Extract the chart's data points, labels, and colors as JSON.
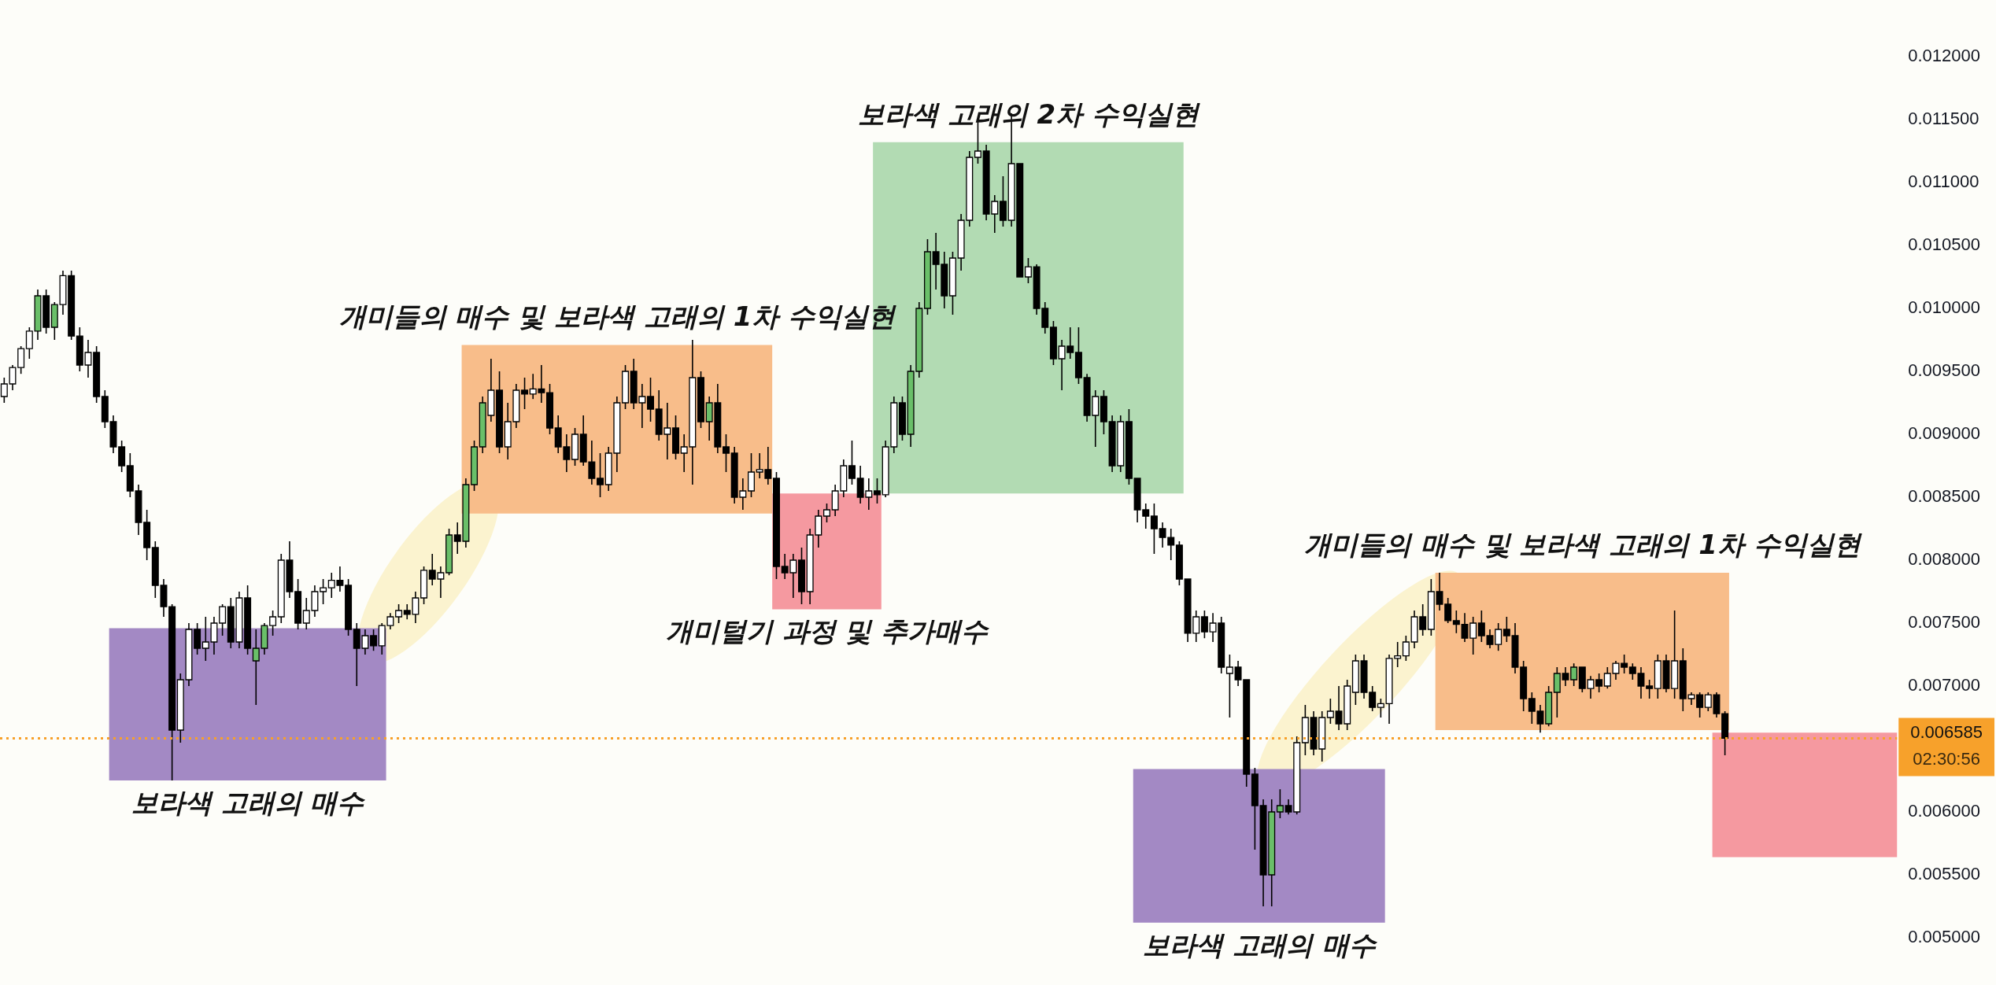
{
  "chart_data": {
    "type": "candlestick",
    "categories": [
      null,
      null,
      null,
      null,
      null,
      null,
      null,
      null,
      null,
      null,
      null,
      null,
      null,
      null,
      null,
      null,
      null,
      null,
      null,
      null,
      null,
      null,
      null,
      null,
      null,
      null,
      null,
      null,
      null,
      null,
      null,
      null,
      null,
      null,
      null,
      null,
      null,
      null,
      null,
      null,
      null,
      null,
      null,
      null,
      null,
      null,
      null,
      null,
      null,
      null,
      null,
      null,
      null,
      null,
      null,
      null,
      null,
      null,
      null,
      null,
      null,
      null,
      null,
      null,
      null,
      null,
      null,
      null,
      null,
      null,
      null,
      null,
      null,
      null,
      null,
      null,
      null,
      null,
      null,
      null,
      null,
      null,
      null,
      null,
      null,
      null,
      null,
      null,
      null,
      null,
      null,
      null,
      null,
      null,
      null,
      null,
      null,
      null,
      null,
      null,
      null,
      null,
      null,
      null,
      null,
      null,
      null,
      null,
      null,
      null,
      null,
      null,
      null,
      null,
      null,
      null,
      null,
      null,
      null,
      null,
      null,
      null,
      null,
      null,
      null,
      null,
      null,
      null,
      null,
      null,
      null,
      null,
      null,
      null,
      null,
      null,
      null,
      null,
      null,
      null,
      null,
      null,
      null,
      null,
      null,
      null,
      null,
      null,
      null,
      null,
      null,
      null,
      null,
      null,
      null,
      null,
      null,
      null,
      null,
      null,
      null,
      null,
      null,
      null,
      null,
      null,
      null,
      null,
      null,
      null,
      null,
      null,
      null,
      null,
      null,
      null,
      null,
      null,
      null,
      null,
      null,
      null,
      null,
      null,
      null,
      null,
      null,
      null,
      null,
      null,
      null,
      null,
      null,
      null,
      null,
      null,
      null,
      null,
      null,
      null,
      null,
      null,
      null,
      null,
      null,
      null,
      null,
      null,
      null,
      null,
      null,
      null,
      null,
      null,
      null,
      null,
      null,
      null,
      null,
      null,
      null,
      null,
      null,
      null,
      null,
      null
    ],
    "ohlc": [
      [
        0.0093,
        0.00945,
        0.00925,
        0.0094
      ],
      [
        0.0094,
        0.00955,
        0.00935,
        0.00953
      ],
      [
        0.00953,
        0.0097,
        0.00948,
        0.00968
      ],
      [
        0.00968,
        0.00985,
        0.0096,
        0.00982
      ],
      [
        0.00982,
        0.01015,
        0.00975,
        0.0101
      ],
      [
        0.0101,
        0.01015,
        0.0098,
        0.00985
      ],
      [
        0.00985,
        0.01005,
        0.00975,
        0.01003
      ],
      [
        0.01003,
        0.0103,
        0.00995,
        0.01026
      ],
      [
        0.01026,
        0.0103,
        0.00975,
        0.00978
      ],
      [
        0.00978,
        0.00985,
        0.0095,
        0.00955
      ],
      [
        0.00955,
        0.00975,
        0.00945,
        0.00965
      ],
      [
        0.00965,
        0.0097,
        0.00925,
        0.0093
      ],
      [
        0.0093,
        0.00935,
        0.00905,
        0.0091
      ],
      [
        0.0091,
        0.00915,
        0.00885,
        0.0089
      ],
      [
        0.0089,
        0.00895,
        0.0087,
        0.00875
      ],
      [
        0.00875,
        0.00885,
        0.0085,
        0.00855
      ],
      [
        0.00855,
        0.0086,
        0.0082,
        0.0083
      ],
      [
        0.0083,
        0.0084,
        0.008,
        0.0081
      ],
      [
        0.0081,
        0.00815,
        0.0077,
        0.0078
      ],
      [
        0.0078,
        0.00785,
        0.00755,
        0.00763
      ],
      [
        0.00763,
        0.00765,
        0.00625,
        0.00665
      ],
      [
        0.00665,
        0.0071,
        0.00655,
        0.00705
      ],
      [
        0.00705,
        0.0075,
        0.007,
        0.00745
      ],
      [
        0.00745,
        0.0075,
        0.00725,
        0.0073
      ],
      [
        0.0073,
        0.00755,
        0.0072,
        0.00735
      ],
      [
        0.00735,
        0.00755,
        0.00725,
        0.0075
      ],
      [
        0.0075,
        0.00765,
        0.0074,
        0.00763
      ],
      [
        0.00763,
        0.0077,
        0.0073,
        0.00735
      ],
      [
        0.00735,
        0.00775,
        0.0073,
        0.0077
      ],
      [
        0.0077,
        0.0078,
        0.00725,
        0.0073
      ],
      [
        0.0072,
        0.00745,
        0.00685,
        0.0073
      ],
      [
        0.0073,
        0.0075,
        0.00725,
        0.00748
      ],
      [
        0.00748,
        0.0076,
        0.0074,
        0.00755
      ],
      [
        0.00755,
        0.00805,
        0.0075,
        0.008
      ],
      [
        0.008,
        0.00815,
        0.0077,
        0.00775
      ],
      [
        0.00775,
        0.00785,
        0.00745,
        0.0075
      ],
      [
        0.0075,
        0.0077,
        0.00745,
        0.0076
      ],
      [
        0.0076,
        0.0078,
        0.00755,
        0.00775
      ],
      [
        0.00775,
        0.00785,
        0.00765,
        0.00778
      ],
      [
        0.00778,
        0.0079,
        0.0077,
        0.00784
      ],
      [
        0.00784,
        0.00795,
        0.00775,
        0.0078
      ],
      [
        0.0078,
        0.00785,
        0.0074,
        0.00745
      ],
      [
        0.00745,
        0.0075,
        0.007,
        0.0073
      ],
      [
        0.0073,
        0.00745,
        0.00725,
        0.0074
      ],
      [
        0.0074,
        0.00745,
        0.00728,
        0.00732
      ],
      [
        0.00732,
        0.0075,
        0.00725,
        0.00748
      ],
      [
        0.00748,
        0.00758,
        0.00745,
        0.00755
      ],
      [
        0.00755,
        0.00765,
        0.0075,
        0.0076
      ],
      [
        0.0076,
        0.00765,
        0.00753,
        0.00757
      ],
      [
        0.00757,
        0.00775,
        0.0075,
        0.0077
      ],
      [
        0.0077,
        0.00795,
        0.00765,
        0.00792
      ],
      [
        0.00792,
        0.00805,
        0.0078,
        0.00785
      ],
      [
        0.00785,
        0.00795,
        0.0077,
        0.0079
      ],
      [
        0.0079,
        0.00825,
        0.00788,
        0.0082
      ],
      [
        0.0082,
        0.0083,
        0.00805,
        0.00815
      ],
      [
        0.00815,
        0.00865,
        0.0081,
        0.0086
      ],
      [
        0.0086,
        0.00895,
        0.00855,
        0.0089
      ],
      [
        0.0089,
        0.0093,
        0.00885,
        0.00925
      ],
      [
        0.00915,
        0.0096,
        0.0091,
        0.00935
      ],
      [
        0.00935,
        0.0095,
        0.00885,
        0.0089
      ],
      [
        0.0089,
        0.00925,
        0.0088,
        0.0091
      ],
      [
        0.0091,
        0.0094,
        0.00905,
        0.00935
      ],
      [
        0.00935,
        0.00945,
        0.0092,
        0.00932
      ],
      [
        0.00932,
        0.00948,
        0.00928,
        0.00936
      ],
      [
        0.00936,
        0.00955,
        0.00925,
        0.00933
      ],
      [
        0.00933,
        0.0094,
        0.009,
        0.00905
      ],
      [
        0.00905,
        0.00915,
        0.00885,
        0.0089
      ],
      [
        0.0089,
        0.009,
        0.0087,
        0.0088
      ],
      [
        0.0088,
        0.00905,
        0.00875,
        0.009
      ],
      [
        0.009,
        0.00915,
        0.00875,
        0.00878
      ],
      [
        0.00878,
        0.00895,
        0.0086,
        0.00865
      ],
      [
        0.00865,
        0.00885,
        0.0085,
        0.0086
      ],
      [
        0.0086,
        0.0089,
        0.00855,
        0.00885
      ],
      [
        0.00885,
        0.0093,
        0.0087,
        0.00925
      ],
      [
        0.00925,
        0.00955,
        0.0092,
        0.0095
      ],
      [
        0.0095,
        0.0096,
        0.0092,
        0.00925
      ],
      [
        0.00925,
        0.0094,
        0.00905,
        0.0093
      ],
      [
        0.0093,
        0.00945,
        0.0091,
        0.0092
      ],
      [
        0.0092,
        0.00935,
        0.00895,
        0.009
      ],
      [
        0.009,
        0.00925,
        0.0088,
        0.00905
      ],
      [
        0.00905,
        0.00915,
        0.0088,
        0.00885
      ],
      [
        0.00885,
        0.009,
        0.0087,
        0.0089
      ],
      [
        0.0089,
        0.00975,
        0.0086,
        0.00945
      ],
      [
        0.00945,
        0.0095,
        0.00905,
        0.0091
      ],
      [
        0.0091,
        0.0093,
        0.00895,
        0.00925
      ],
      [
        0.00925,
        0.0094,
        0.00885,
        0.0089
      ],
      [
        0.0089,
        0.009,
        0.0087,
        0.00885
      ],
      [
        0.00885,
        0.0089,
        0.00845,
        0.0085
      ],
      [
        0.0085,
        0.00865,
        0.0084,
        0.00855
      ],
      [
        0.00855,
        0.00885,
        0.0085,
        0.0087
      ],
      [
        0.0087,
        0.00885,
        0.00865,
        0.00872
      ],
      [
        0.00872,
        0.0089,
        0.0086,
        0.00865
      ],
      [
        0.00865,
        0.0087,
        0.00785,
        0.00795
      ],
      [
        0.00795,
        0.00805,
        0.00785,
        0.0079
      ],
      [
        0.0079,
        0.00805,
        0.0077,
        0.008
      ],
      [
        0.008,
        0.0081,
        0.00765,
        0.00775
      ],
      [
        0.00775,
        0.00825,
        0.00765,
        0.0082
      ],
      [
        0.0082,
        0.0084,
        0.0081,
        0.00835
      ],
      [
        0.00835,
        0.00845,
        0.0083,
        0.0084
      ],
      [
        0.0084,
        0.0086,
        0.00835,
        0.00855
      ],
      [
        0.00855,
        0.0088,
        0.0085,
        0.00875
      ],
      [
        0.00875,
        0.00895,
        0.0086,
        0.00865
      ],
      [
        0.00865,
        0.00875,
        0.00845,
        0.0085
      ],
      [
        0.0085,
        0.00865,
        0.0084,
        0.00855
      ],
      [
        0.00855,
        0.00865,
        0.00845,
        0.00852
      ],
      [
        0.00852,
        0.00895,
        0.0085,
        0.0089
      ],
      [
        0.0089,
        0.0093,
        0.00885,
        0.00925
      ],
      [
        0.00925,
        0.0093,
        0.00895,
        0.009
      ],
      [
        0.009,
        0.00955,
        0.0089,
        0.0095
      ],
      [
        0.0095,
        0.01005,
        0.00945,
        0.01
      ],
      [
        0.01,
        0.01055,
        0.00995,
        0.01045
      ],
      [
        0.01045,
        0.0106,
        0.01015,
        0.01035
      ],
      [
        0.01035,
        0.01045,
        0.01,
        0.0101
      ],
      [
        0.0101,
        0.01045,
        0.00995,
        0.0104
      ],
      [
        0.0104,
        0.01075,
        0.0103,
        0.0107
      ],
      [
        0.0107,
        0.01125,
        0.01065,
        0.0112
      ],
      [
        0.0112,
        0.0115,
        0.01115,
        0.01125
      ],
      [
        0.01125,
        0.0113,
        0.0107,
        0.01075
      ],
      [
        0.01075,
        0.0109,
        0.0106,
        0.01085
      ],
      [
        0.01085,
        0.01105,
        0.01065,
        0.0107
      ],
      [
        0.0107,
        0.01155,
        0.01065,
        0.01115
      ],
      [
        0.01115,
        0.01115,
        0.01025,
        0.01025
      ],
      [
        0.01025,
        0.0104,
        0.0102,
        0.01033
      ],
      [
        0.01033,
        0.01035,
        0.00995,
        0.01
      ],
      [
        0.01,
        0.01005,
        0.0098,
        0.00985
      ],
      [
        0.00985,
        0.0099,
        0.00955,
        0.0096
      ],
      [
        0.0096,
        0.00975,
        0.00935,
        0.0097
      ],
      [
        0.0097,
        0.00985,
        0.0096,
        0.00965
      ],
      [
        0.00965,
        0.00985,
        0.0094,
        0.00945
      ],
      [
        0.00945,
        0.00948,
        0.0091,
        0.00915
      ],
      [
        0.00915,
        0.00935,
        0.0089,
        0.0093
      ],
      [
        0.0093,
        0.00935,
        0.009,
        0.0091
      ],
      [
        0.0091,
        0.00915,
        0.0087,
        0.00875
      ],
      [
        0.00875,
        0.00915,
        0.0087,
        0.0091
      ],
      [
        0.0091,
        0.0092,
        0.0086,
        0.00865
      ],
      [
        0.00865,
        0.00865,
        0.0083,
        0.0084
      ],
      [
        0.0084,
        0.00845,
        0.00825,
        0.00835
      ],
      [
        0.00835,
        0.00845,
        0.00805,
        0.00825
      ],
      [
        0.00825,
        0.0083,
        0.0081,
        0.00818
      ],
      [
        0.00818,
        0.00825,
        0.008,
        0.00812
      ],
      [
        0.00812,
        0.00815,
        0.0078,
        0.00785
      ],
      [
        0.00785,
        0.00785,
        0.00735,
        0.00742
      ],
      [
        0.00742,
        0.0076,
        0.00735,
        0.00755
      ],
      [
        0.00755,
        0.0076,
        0.00738,
        0.00743
      ],
      [
        0.00743,
        0.00758,
        0.00735,
        0.0075
      ],
      [
        0.0075,
        0.00755,
        0.0071,
        0.00715
      ],
      [
        0.0071,
        0.00725,
        0.00675,
        0.00715
      ],
      [
        0.00715,
        0.0072,
        0.007,
        0.00705
      ],
      [
        0.00705,
        0.00705,
        0.0062,
        0.0063
      ],
      [
        0.0063,
        0.00635,
        0.0057,
        0.00605
      ],
      [
        0.00605,
        0.0061,
        0.00525,
        0.0055
      ],
      [
        0.0055,
        0.0061,
        0.00525,
        0.006
      ],
      [
        0.006,
        0.00618,
        0.00595,
        0.00605
      ],
      [
        0.00605,
        0.0061,
        0.00598,
        0.006
      ],
      [
        0.006,
        0.0066,
        0.00598,
        0.00655
      ],
      [
        0.00655,
        0.00685,
        0.00645,
        0.00675
      ],
      [
        0.00675,
        0.0068,
        0.00645,
        0.0065
      ],
      [
        0.0065,
        0.0068,
        0.0064,
        0.00675
      ],
      [
        0.00675,
        0.0069,
        0.0067,
        0.0068
      ],
      [
        0.0068,
        0.007,
        0.00665,
        0.0067
      ],
      [
        0.0067,
        0.00705,
        0.00665,
        0.007
      ],
      [
        0.00695,
        0.00725,
        0.00685,
        0.0072
      ],
      [
        0.0072,
        0.00725,
        0.0069,
        0.00695
      ],
      [
        0.00695,
        0.007,
        0.0068,
        0.00683
      ],
      [
        0.00683,
        0.0069,
        0.00675,
        0.00686
      ],
      [
        0.00686,
        0.00725,
        0.0067,
        0.00722
      ],
      [
        0.00722,
        0.00735,
        0.00715,
        0.00724
      ],
      [
        0.00724,
        0.0074,
        0.0072,
        0.00735
      ],
      [
        0.00735,
        0.0076,
        0.0073,
        0.00755
      ],
      [
        0.00755,
        0.00765,
        0.0074,
        0.00745
      ],
      [
        0.00745,
        0.00785,
        0.0074,
        0.00775
      ],
      [
        0.00775,
        0.0079,
        0.0076,
        0.00765
      ],
      [
        0.00765,
        0.0077,
        0.0075,
        0.00752
      ],
      [
        0.00752,
        0.0076,
        0.00742,
        0.00749
      ],
      [
        0.00749,
        0.00758,
        0.00735,
        0.00738
      ],
      [
        0.00738,
        0.00755,
        0.00725,
        0.0075
      ],
      [
        0.0075,
        0.0076,
        0.00735,
        0.0074
      ],
      [
        0.0074,
        0.00745,
        0.0073,
        0.00733
      ],
      [
        0.00733,
        0.0075,
        0.00728,
        0.00745
      ],
      [
        0.00745,
        0.00755,
        0.00735,
        0.0074
      ],
      [
        0.0074,
        0.0075,
        0.0071,
        0.00715
      ],
      [
        0.00715,
        0.0072,
        0.0068,
        0.0069
      ],
      [
        0.0069,
        0.00695,
        0.0067,
        0.0068
      ],
      [
        0.0068,
        0.00685,
        0.00663,
        0.0067
      ],
      [
        0.0067,
        0.007,
        0.00668,
        0.00695
      ],
      [
        0.00695,
        0.00715,
        0.00675,
        0.0071
      ],
      [
        0.0071,
        0.00715,
        0.007,
        0.00705
      ],
      [
        0.00705,
        0.00718,
        0.007,
        0.00715
      ],
      [
        0.00715,
        0.00715,
        0.00695,
        0.00698
      ],
      [
        0.00698,
        0.00708,
        0.0069,
        0.00705
      ],
      [
        0.00705,
        0.0071,
        0.00695,
        0.007
      ],
      [
        0.007,
        0.00715,
        0.00698,
        0.0071
      ],
      [
        0.0071,
        0.0072,
        0.00705,
        0.00718
      ],
      [
        0.00718,
        0.00725,
        0.0071,
        0.00715
      ],
      [
        0.00715,
        0.00718,
        0.00705,
        0.0071
      ],
      [
        0.0071,
        0.00715,
        0.0069,
        0.007
      ],
      [
        0.007,
        0.00705,
        0.0069,
        0.00698
      ],
      [
        0.00698,
        0.00725,
        0.0069,
        0.0072
      ],
      [
        0.0072,
        0.00725,
        0.00695,
        0.00698
      ],
      [
        0.00698,
        0.0076,
        0.0069,
        0.0072
      ],
      [
        0.0072,
        0.0073,
        0.0068,
        0.0069
      ],
      [
        0.0069,
        0.00695,
        0.00685,
        0.00693
      ],
      [
        0.00693,
        0.00695,
        0.00675,
        0.00683
      ],
      [
        0.00683,
        0.00695,
        0.0068,
        0.00693
      ],
      [
        0.00693,
        0.00695,
        0.00675,
        0.00678
      ],
      [
        0.00678,
        0.0068,
        0.00645,
        0.006585
      ],
      null,
      null,
      null,
      null,
      null,
      null,
      null,
      null,
      null,
      null,
      null,
      null,
      null,
      null,
      null,
      null,
      null,
      null,
      null,
      null
    ],
    "colors": [
      "#ffffff",
      "#ffffff",
      "#ffffff",
      "#ffffff",
      "#6abf69",
      "#000000",
      "#6abf69",
      "#ffffff",
      "#000000",
      "#000000",
      "#ffffff",
      "#000000",
      "#000000",
      "#000000",
      "#000000",
      "#000000",
      "#000000",
      "#000000",
      "#000000",
      "#000000",
      "#000000",
      "#ffffff",
      "#ffffff",
      "#000000",
      "#ffffff",
      "#ffffff",
      "#ffffff",
      "#000000",
      "#ffffff",
      "#000000",
      "#6abf69",
      "#6abf69",
      "#ffffff",
      "#ffffff",
      "#000000",
      "#000000",
      "#ffffff",
      "#ffffff",
      "#ffffff",
      "#ffffff",
      "#000000",
      "#000000",
      "#000000",
      "#ffffff",
      "#000000",
      "#ffffff",
      "#ffffff",
      "#ffffff",
      "#000000",
      "#ffffff",
      "#ffffff",
      "#000000",
      "#ffffff",
      "#6abf69",
      "#000000",
      "#6abf69",
      "#6abf69",
      "#6abf69",
      "#ffffff",
      "#000000",
      "#ffffff",
      "#ffffff",
      "#000000",
      "#ffffff",
      "#000000",
      "#000000",
      "#000000",
      "#000000",
      "#ffffff",
      "#000000",
      "#000000",
      "#000000",
      "#ffffff",
      "#ffffff",
      "#ffffff",
      "#000000",
      "#ffffff",
      "#000000",
      "#000000",
      "#ffffff",
      "#000000",
      "#ffffff",
      "#ffffff",
      "#000000",
      "#6abf69",
      "#000000",
      "#000000",
      "#000000",
      "#ffffff",
      "#ffffff",
      "#ffffff",
      "#000000",
      "#000000",
      "#000000",
      "#ffffff",
      "#000000",
      "#ffffff",
      "#ffffff",
      "#ffffff",
      "#ffffff",
      "#ffffff",
      "#000000",
      "#000000",
      "#ffffff",
      "#000000",
      "#ffffff",
      "#ffffff",
      "#000000",
      "#6abf69",
      "#6abf69",
      "#6abf69",
      "#000000",
      "#000000",
      "#ffffff",
      "#ffffff",
      "#ffffff",
      "#ffffff",
      "#000000",
      "#ffffff",
      "#000000",
      "#ffffff",
      "#000000",
      "#ffffff",
      "#000000",
      "#000000",
      "#000000",
      "#ffffff",
      "#000000",
      "#000000",
      "#000000",
      "#ffffff",
      "#000000",
      "#000000",
      "#ffffff",
      "#000000",
      "#000000",
      "#000000",
      "#000000",
      "#000000",
      "#000000",
      "#000000",
      "#000000",
      "#ffffff",
      "#000000",
      "#ffffff",
      "#000000",
      "#ffffff",
      "#000000",
      "#000000",
      "#000000",
      "#000000",
      "#6abf69",
      "#6abf69",
      "#000000",
      "#ffffff",
      "#ffffff",
      "#000000",
      "#ffffff",
      "#ffffff",
      "#000000",
      "#ffffff",
      "#ffffff",
      "#000000",
      "#000000",
      "#ffffff",
      "#ffffff",
      "#ffffff",
      "#ffffff",
      "#ffffff",
      "#000000",
      "#ffffff",
      "#000000",
      "#000000",
      "#000000",
      "#000000",
      "#ffffff",
      "#000000",
      "#000000",
      "#ffffff",
      "#000000",
      "#000000",
      "#000000",
      "#000000",
      "#000000",
      "#6abf69",
      "#6abf69",
      "#000000",
      "#6abf69",
      "#000000",
      "#ffffff",
      "#000000",
      "#ffffff",
      "#ffffff",
      "#000000",
      "#000000",
      "#000000",
      "#000000",
      "#ffffff",
      "#000000",
      "#ffffff",
      "#000000",
      "#ffffff",
      "#000000",
      "#ffffff",
      "#000000",
      "#000000",
      null,
      null,
      null,
      null,
      null,
      null,
      null,
      null,
      null,
      null,
      null,
      null,
      null,
      null,
      null,
      null,
      null,
      null,
      null,
      null
    ],
    "ylim": [
      0.005,
      0.012
    ],
    "yticks": [
      {
        "value": 0.005,
        "label": "0.005000"
      },
      {
        "value": 0.0055,
        "label": "0.005500"
      },
      {
        "value": 0.006,
        "label": "0.006000"
      },
      {
        "value": 0.007,
        "label": "0.007000"
      },
      {
        "value": 0.0075,
        "label": "0.007500"
      },
      {
        "value": 0.008,
        "label": "0.008000"
      },
      {
        "value": 0.0085,
        "label": "0.008500"
      },
      {
        "value": 0.009,
        "label": "0.009000"
      },
      {
        "value": 0.0095,
        "label": "0.009500"
      },
      {
        "value": 0.01,
        "label": "0.010000"
      },
      {
        "value": 0.0105,
        "label": "0.010500"
      },
      {
        "value": 0.011,
        "label": "0.011000"
      },
      {
        "value": 0.0115,
        "label": "0.011500"
      },
      {
        "value": 0.012,
        "label": "0.012000"
      }
    ],
    "tick_labels": "y",
    "ref_lines": [
      {
        "axis": "y",
        "value": 0.006585,
        "label": "0.006585",
        "color": "#f7a12b",
        "line_style": "dotted"
      }
    ],
    "annotations": [
      "02:30:56"
    ],
    "bands": [
      {
        "axis": "y",
        "from": 0.00625,
        "to": 0.00746,
        "label": "보라색 고래의 매수",
        "color": "#a389c4"
      },
      {
        "axis": "y",
        "from": 0.00837,
        "to": 0.00971,
        "label": "개미들의 매수 및 보라색 고래의 1차 수익실현",
        "color": "#f8bd8a"
      },
      {
        "axis": "y",
        "from": 0.00761,
        "to": 0.00853,
        "label": "개미털기 과정 및 추가매수",
        "color": "#f599a0"
      },
      {
        "axis": "y",
        "from": 0.00853,
        "to": 0.01132,
        "label": "보라색 고래의 2차 수익실현",
        "color": "#b2dbb3"
      },
      {
        "axis": "y",
        "from": 0.00512,
        "to": 0.00634,
        "label": "보라색 고래의 매수",
        "color": "#a389c4"
      },
      {
        "axis": "y",
        "from": 0.00665,
        "to": 0.0079,
        "label": "개미들의 매수 및 보라색 고래의 1차 수익실현",
        "color": "#f8bd8a"
      },
      {
        "axis": "y",
        "from": 0.00564,
        "to": 0.00663,
        "color": "#f599a0"
      }
    ]
  }
}
